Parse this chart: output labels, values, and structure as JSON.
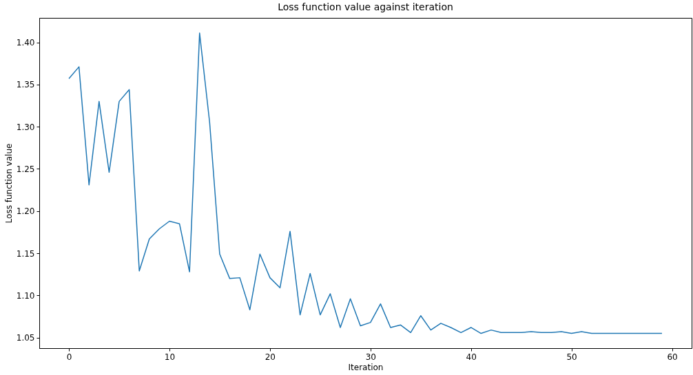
{
  "chart_data": {
    "type": "line",
    "title": "Loss function value against iteration",
    "xlabel": "Iteration",
    "ylabel": "Loss function value",
    "x": [
      0,
      1,
      2,
      3,
      4,
      5,
      6,
      7,
      8,
      9,
      10,
      11,
      12,
      13,
      14,
      15,
      16,
      17,
      18,
      19,
      20,
      21,
      22,
      23,
      24,
      25,
      26,
      27,
      28,
      29,
      30,
      31,
      32,
      33,
      34,
      35,
      36,
      37,
      38,
      39,
      40,
      41,
      42,
      43,
      44,
      45,
      46,
      47,
      48,
      49,
      50,
      51,
      52,
      53,
      54,
      55,
      56,
      57,
      58,
      59
    ],
    "series": [
      {
        "color": "#1f77b4",
        "values": [
          1.357,
          1.371,
          1.231,
          1.33,
          1.246,
          1.33,
          1.344,
          1.129,
          1.167,
          1.179,
          1.188,
          1.185,
          1.128,
          1.411,
          1.305,
          1.149,
          1.12,
          1.121,
          1.083,
          1.149,
          1.121,
          1.109,
          1.176,
          1.077,
          1.126,
          1.077,
          1.102,
          1.062,
          1.096,
          1.064,
          1.068,
          1.09,
          1.062,
          1.065,
          1.056,
          1.076,
          1.059,
          1.067,
          1.062,
          1.056,
          1.062,
          1.055,
          1.059,
          1.056,
          1.056,
          1.056,
          1.057,
          1.056,
          1.056,
          1.057,
          1.055,
          1.057,
          1.055,
          1.055,
          1.055,
          1.055,
          1.055,
          1.055,
          1.055,
          1.055
        ]
      }
    ],
    "xlim": [
      -2.95,
      61.95
    ],
    "xticks": [
      0,
      10,
      20,
      30,
      40,
      50,
      60
    ],
    "ylim": [
      1.0375,
      1.429
    ],
    "yticks": [
      {
        "value": 1.05,
        "label": "1.05"
      },
      {
        "value": 1.1,
        "label": "1.10"
      },
      {
        "value": 1.15,
        "label": "1.15"
      },
      {
        "value": 1.2,
        "label": "1.20"
      },
      {
        "value": 1.25,
        "label": "1.25"
      },
      {
        "value": 1.3,
        "label": "1.30"
      },
      {
        "value": 1.35,
        "label": "1.35"
      },
      {
        "value": 1.4,
        "label": "1.40"
      }
    ],
    "grid": false,
    "marker": "none",
    "line_style": "solid"
  }
}
